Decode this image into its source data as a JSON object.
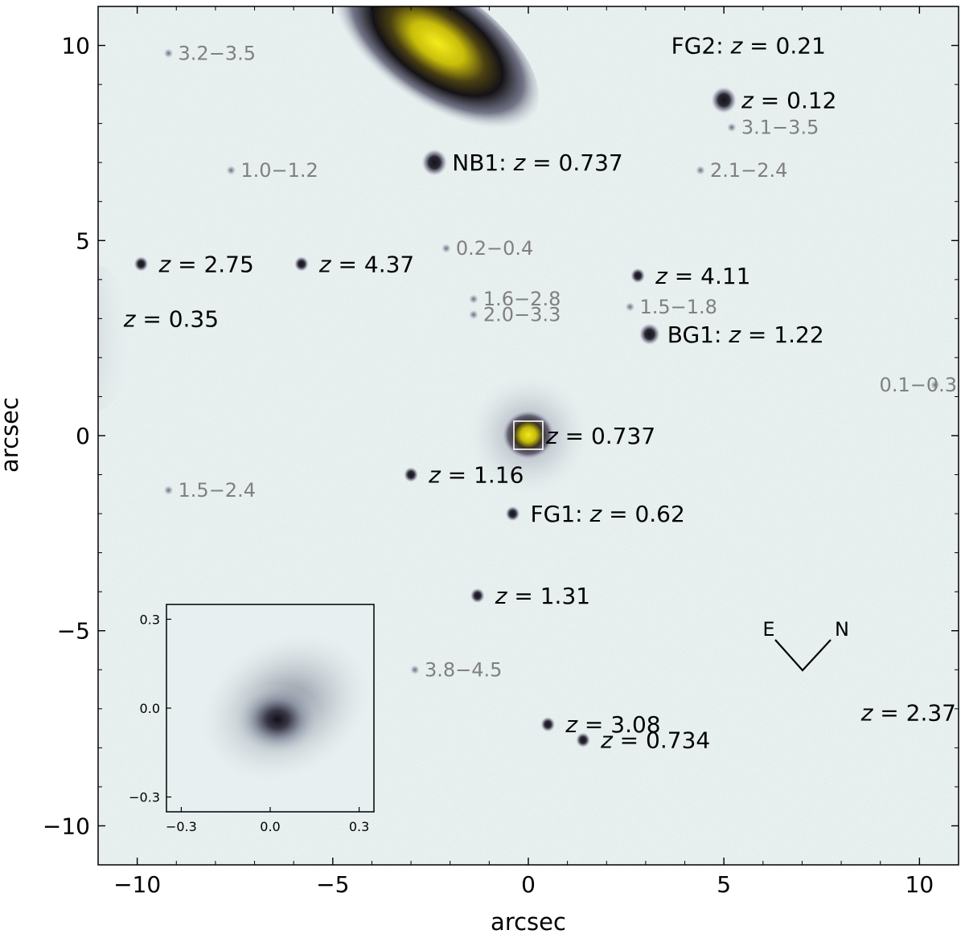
{
  "main_panel": {
    "xlabel": "arcsec",
    "ylabel": "arcsec",
    "xticks": [
      {
        "value": -10,
        "label": "−10"
      },
      {
        "value": -5,
        "label": "−5"
      },
      {
        "value": 0,
        "label": "0"
      },
      {
        "value": 5,
        "label": "5"
      },
      {
        "value": 10,
        "label": "10"
      }
    ],
    "yticks": [
      {
        "value": 10,
        "label": "10"
      },
      {
        "value": 5,
        "label": "5"
      },
      {
        "value": 0,
        "label": "0"
      },
      {
        "value": -5,
        "label": "−5"
      },
      {
        "value": -10,
        "label": "−10"
      }
    ],
    "xlim": [
      -11,
      11
    ],
    "ylim": [
      -11,
      11
    ]
  },
  "sources": [
    {
      "id": "src-1",
      "x": 0,
      "y": 0,
      "z": "0.737"
    },
    {
      "id": "src-2",
      "x": -2.4,
      "y": 7.0,
      "prefix": "NB1: ",
      "z": "0.737"
    },
    {
      "id": "src-3",
      "x": 3.2,
      "y": 10.0,
      "prefix": "FG2: ",
      "z": "0.21"
    },
    {
      "id": "src-4",
      "x": 5.0,
      "y": 8.6,
      "z": "0.12"
    },
    {
      "id": "src-5",
      "x": -9.9,
      "y": 4.4,
      "z": "2.75"
    },
    {
      "id": "src-6",
      "x": -5.8,
      "y": 4.4,
      "z": "4.37"
    },
    {
      "id": "src-7",
      "x": -10.8,
      "y": 3.0,
      "z": "0.35"
    },
    {
      "id": "src-8",
      "x": 2.8,
      "y": 4.1,
      "z": "4.11"
    },
    {
      "id": "src-9",
      "x": 3.1,
      "y": 2.6,
      "prefix": "BG1: ",
      "z": "1.22"
    },
    {
      "id": "src-10",
      "x": -3.0,
      "y": -1.0,
      "z": "1.16"
    },
    {
      "id": "src-11",
      "x": -0.4,
      "y": -2.0,
      "prefix": "FG1: ",
      "z": "0.62"
    },
    {
      "id": "src-12",
      "x": -1.3,
      "y": -4.1,
      "z": "1.31"
    },
    {
      "id": "src-13",
      "x": 0.5,
      "y": -7.4,
      "z": "3.08"
    },
    {
      "id": "src-14",
      "x": 1.4,
      "y": -7.8,
      "z": "0.734"
    },
    {
      "id": "src-15",
      "x": 10.9,
      "y": -7.1,
      "z": "2.37"
    }
  ],
  "photoz": [
    {
      "x": -9.2,
      "y": 9.8,
      "label": "3.2−3.5"
    },
    {
      "x": -7.6,
      "y": 6.8,
      "label": "1.0−1.2"
    },
    {
      "x": -2.1,
      "y": 4.8,
      "label": "0.2−0.4"
    },
    {
      "x": 5.2,
      "y": 7.9,
      "label": "3.1−3.5"
    },
    {
      "x": 4.4,
      "y": 6.8,
      "label": "2.1−2.4"
    },
    {
      "x": -1.4,
      "y": 3.5,
      "label": "1.6−2.8"
    },
    {
      "x": -1.4,
      "y": 3.1,
      "label": "2.0−3.3"
    },
    {
      "x": 2.6,
      "y": 3.3,
      "label": "1.5−1.8"
    },
    {
      "x": 10.4,
      "y": 1.3,
      "label": "0.1−0.3"
    },
    {
      "x": -9.2,
      "y": -1.4,
      "label": "1.5−2.4"
    },
    {
      "x": -2.9,
      "y": -6.0,
      "label": "3.8−4.5"
    }
  ],
  "compass": {
    "east": "E",
    "north": "N"
  },
  "inset": {
    "ticks": [
      {
        "value": -0.3,
        "label": "−0.3"
      },
      {
        "value": 0.0,
        "label": "0.0"
      },
      {
        "value": 0.3,
        "label": "0.3"
      }
    ],
    "lim": [
      -0.35,
      0.35
    ]
  },
  "colors": {
    "background": "#e9f0f0",
    "dark": "#1b1a1e",
    "yellow": "#e6df0d",
    "photoz_text": "#808080",
    "label_text": "#000000"
  }
}
